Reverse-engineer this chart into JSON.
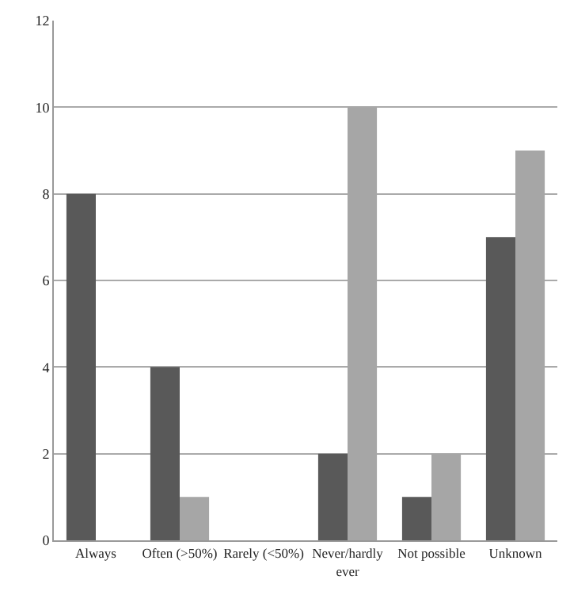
{
  "chart_data": {
    "type": "bar",
    "categories": [
      "Always",
      "Often (>50%)",
      "Rarely (<50%)",
      "Never/hardly ever",
      "Not possible",
      "Unknown"
    ],
    "series": [
      {
        "color": "#595959",
        "values": [
          8,
          4,
          0,
          2,
          1,
          7
        ]
      },
      {
        "color": "#a6a6a6",
        "values": [
          0,
          1,
          0,
          10,
          2,
          9
        ]
      }
    ],
    "ylim": [
      0,
      12
    ],
    "yticks": [
      0,
      2,
      4,
      6,
      8,
      10,
      12
    ],
    "grid": "y"
  }
}
